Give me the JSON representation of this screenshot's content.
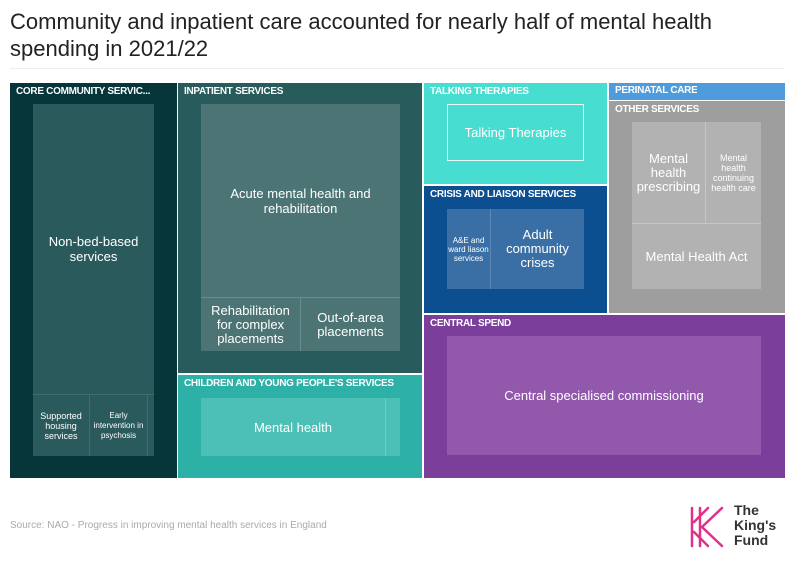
{
  "title": "Community and inpatient care accounted for nearly half of mental health spending in 2021/22",
  "source": "Source: NAO - Progress in improving mental health services in England",
  "logo": {
    "line1": "The",
    "line2": "King's",
    "line3": "Fund",
    "icon": "kings-fund-k-icon"
  },
  "colors": {
    "core": "#06353a",
    "inpatient": "#285c5c",
    "children": "#2db0a6",
    "talking": "#47ddd0",
    "crisis": "#0b4f91",
    "perinatal": "#4f9cdc",
    "other": "#9e9e9e",
    "central": "#7b3f9b"
  },
  "chart_data": {
    "type": "treemap",
    "title": "Community and inpatient care accounted for nearly half of mental health spending in 2021/22",
    "groups": [
      {
        "name": "CORE COMMUNITY SERVIC...",
        "items": [
          "Non-bed-based services",
          "Supported housing services",
          "Early intervention in psychosis"
        ]
      },
      {
        "name": "INPATIENT SERVICES",
        "items": [
          "Acute mental health and rehabilitation",
          "Rehabilitation for complex placements",
          "Out-of-area placements"
        ]
      },
      {
        "name": "CHILDREN AND YOUNG PEOPLE'S SERVICES",
        "items": [
          "Mental health"
        ]
      },
      {
        "name": "TALKING THERAPIES",
        "items": [
          "Talking Therapies"
        ]
      },
      {
        "name": "CRISIS AND LIAISON SERVICES",
        "items": [
          "A&E and ward liason services",
          "Adult community crises"
        ]
      },
      {
        "name": "PERINATAL CARE",
        "items": []
      },
      {
        "name": "OTHER SERVICES",
        "items": [
          "Mental health prescribing",
          "Mental health continuing health care",
          "Mental Health Act"
        ]
      },
      {
        "name": "CENTRAL SPEND",
        "items": [
          "Central specialised commissioning"
        ]
      }
    ]
  }
}
